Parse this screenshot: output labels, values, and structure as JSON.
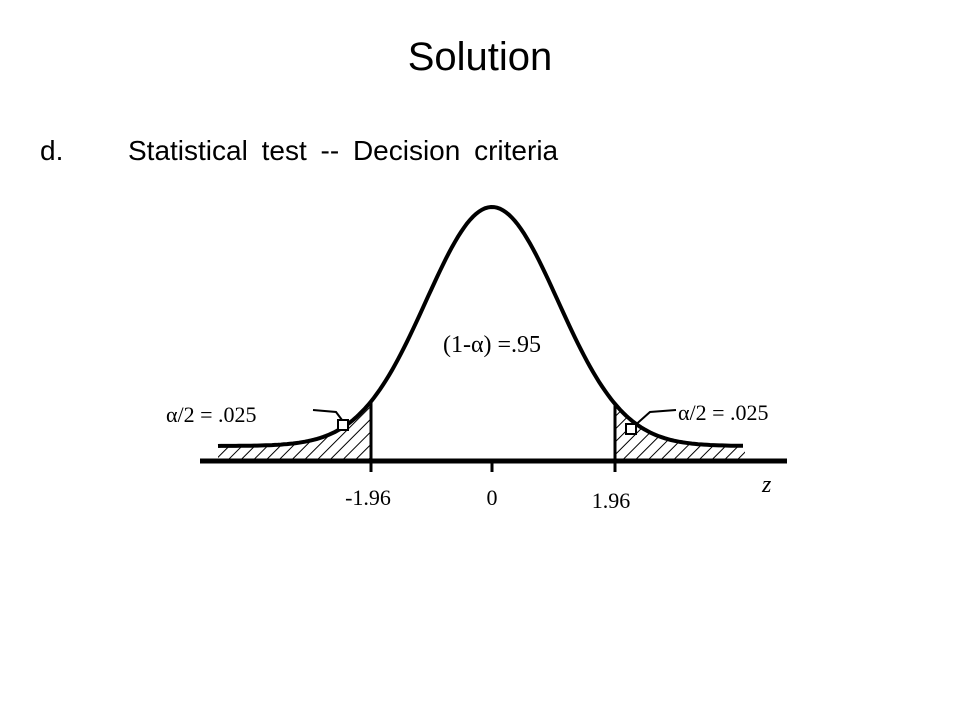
{
  "title": "Solution",
  "item": {
    "marker": "d.",
    "text": "Statistical test -- Decision criteria"
  },
  "figure": {
    "center_label": "(1-α) =.95",
    "left_tail_label": "α/2 = .025",
    "right_tail_label": "α/2 = .025",
    "tick_labels": [
      "-1.96",
      "0",
      "1.96"
    ],
    "axis_label": "z"
  }
}
